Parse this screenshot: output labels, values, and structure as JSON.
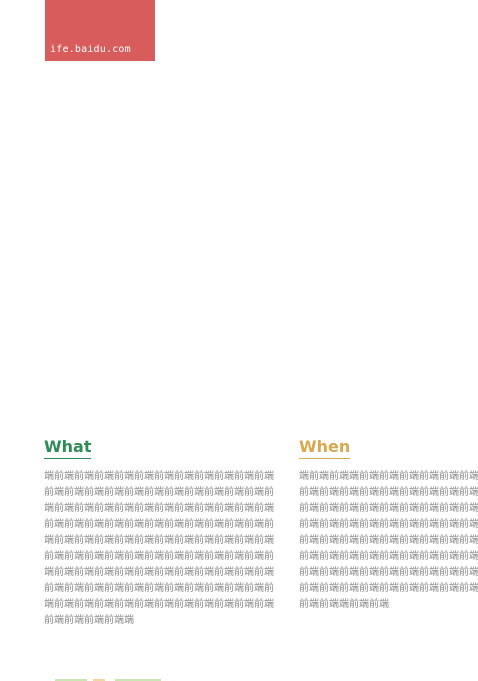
{
  "logo": {
    "text": "ife.baidu.com"
  },
  "columns": {
    "what": {
      "title": "What",
      "body": "端前端前端前端前端前端前端前端前端前端前端前端前端前端前端前端前端前端前端前端前端前端前端前端前端前端前端前端前端前端前端前端前端前端前端前端前端前端前端前端前端前端前端前端前端前端前端前端前端前端前端前端前端前端前端前端前端前端前端前端前端前端前端前端前端前端前端前端前端前端前端前端前端前端前端前端前端前端前端前端前端前端前端前端前端前端前端前端前端前端前端前端前端前端前端前端前端前端前端前端前端前端前端前端前端前端前端前端端",
      "color": "#2e8b57"
    },
    "when": {
      "title": "When",
      "body": "端前端前端端前端前端前端前端前端前端前端前端前端前端前端前端前端前端前端前端前端前端前端前端前端前端前端前端前端前端前端前端前端前端前端前端前端前端前端前端前端前端前端前端前端前端前端前端前端前端前端前端前端前端前端前端前端前端前端前端前端前端前端前端前端前端前端前端前端前端前端前端前端前端前端端前端前端",
      "color": "#d9a84e"
    }
  },
  "colors": {
    "logo_bg": "#d95c5c",
    "body_text": "#8a8a8a"
  }
}
